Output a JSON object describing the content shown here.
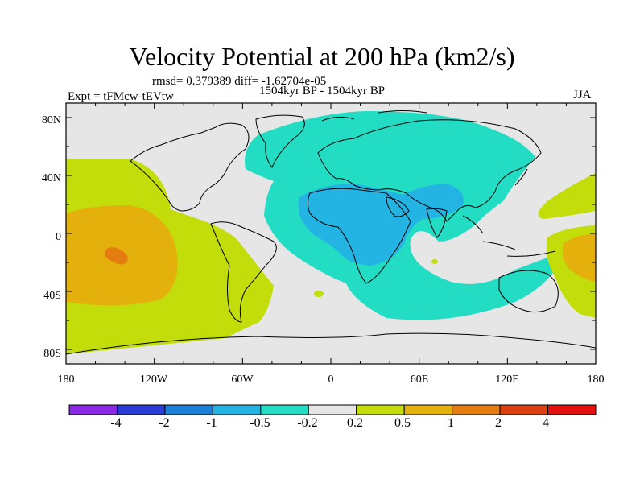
{
  "title": "Velocity Potential at 200 hPa (km2/s)",
  "stats_line": "rmsd= 0.379389 diff= -1.62704e-05",
  "experiment": "Expt = tFMcw-tEVtw",
  "period": "1504kyr BP - 1504kyr BP",
  "season": "JJA",
  "chart_data": {
    "type": "contour-map",
    "variable": "Velocity Potential at 200 hPa",
    "units": "km2/s",
    "projection": "cylindrical equidistant",
    "lon_range": [
      -180,
      180
    ],
    "lat_range": [
      -90,
      90
    ],
    "x_tick_labels": [
      "180",
      "120W",
      "60W",
      "0",
      "60E",
      "120E",
      "180"
    ],
    "y_tick_labels": [
      "80N",
      "40N",
      "0",
      "40S",
      "80S"
    ],
    "contour_levels": [
      -4,
      -2,
      -1,
      -0.5,
      -0.2,
      0.2,
      0.5,
      1,
      2,
      4
    ],
    "colorbar_labels": [
      "-4",
      "-2",
      "-1",
      "-0.5",
      "-0.2",
      "0.2",
      "0.5",
      "1",
      "2",
      "4"
    ],
    "colors": [
      "#8a28e6",
      "#2a3cd8",
      "#1c7fd8",
      "#24b4e4",
      "#22dcc4",
      "#e6e6e6",
      "#c2dd0a",
      "#e4b00c",
      "#e47c10",
      "#dc4010",
      "#e41010"
    ],
    "regions": [
      {
        "name": "eastern Pacific positive center",
        "range": "1 to 2",
        "center": [
          -146,
          -7
        ]
      },
      {
        "name": "eastern Pacific positive lobe",
        "range": "0.5 to 1",
        "center": [
          -150,
          -15
        ]
      },
      {
        "name": "Pacific / Americas positive region",
        "range": "0.2 to 0.5",
        "center": [
          -145,
          -5
        ]
      },
      {
        "name": "Africa negative center",
        "range": "-1 to -0.5",
        "center": [
          15,
          5
        ]
      },
      {
        "name": "Eurasia / Indian Ocean negative region",
        "range": "-0.5 to -0.2",
        "center": [
          40,
          20
        ]
      },
      {
        "name": "western Pacific positive region",
        "range": "0.5 to 1",
        "center": [
          172,
          -8
        ]
      }
    ]
  }
}
